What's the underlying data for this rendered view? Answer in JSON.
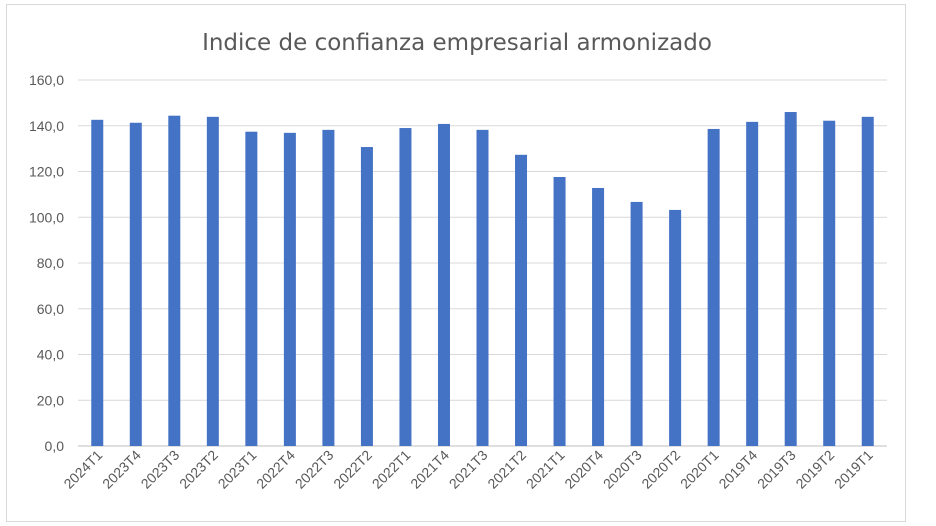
{
  "chart_data": {
    "type": "bar",
    "title": "Indice de confianza empresarial armonizado",
    "xlabel": "",
    "ylabel": "",
    "categories": [
      "2024T1",
      "2023T4",
      "2023T3",
      "2023T2",
      "2023T1",
      "2022T4",
      "2022T3",
      "2022T2",
      "2022T1",
      "2021T4",
      "2021T3",
      "2021T2",
      "2021T1",
      "2020T4",
      "2020T3",
      "2020T2",
      "2020T1",
      "2019T4",
      "2019T3",
      "2019T2",
      "2019T1"
    ],
    "values": [
      142.6,
      141.3,
      144.4,
      143.9,
      137.4,
      136.9,
      138.2,
      130.7,
      139.0,
      140.8,
      138.2,
      127.3,
      117.6,
      112.8,
      106.7,
      103.2,
      138.6,
      141.7,
      146.0,
      142.2,
      143.9
    ],
    "ylim": [
      0,
      160
    ],
    "yticks": [
      0,
      20,
      40,
      60,
      80,
      100,
      120,
      140,
      160
    ],
    "ytick_labels": [
      "0,0",
      "20,0",
      "40,0",
      "60,0",
      "80,0",
      "100,0",
      "120,0",
      "140,0",
      "160,0"
    ],
    "grid": true,
    "legend": "none",
    "bar_color": "#4472c4"
  }
}
